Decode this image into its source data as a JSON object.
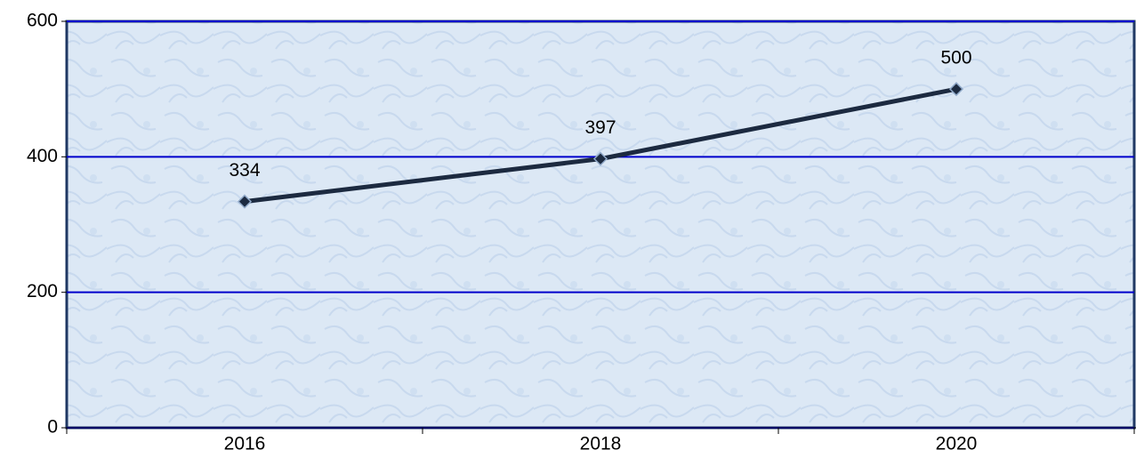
{
  "chart_data": {
    "type": "line",
    "categories": [
      "2016",
      "2018",
      "2020"
    ],
    "series": [
      {
        "values": [
          334,
          397,
          500
        ],
        "color": "#1c2a40"
      }
    ],
    "ylim": [
      0,
      600
    ],
    "yticks": [
      0,
      200,
      400,
      600
    ],
    "grid": true,
    "grid_color": "#0000cc",
    "data_labels": true
  }
}
